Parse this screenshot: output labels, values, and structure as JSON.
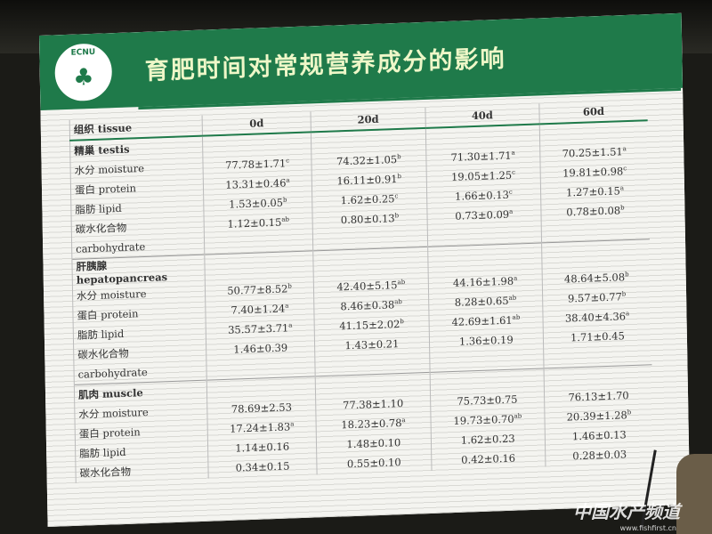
{
  "slide": {
    "title": "育肥时间对常规营养成分的影响",
    "logo_text": "EAST CHINA NORMAL UNIVERSITY",
    "accent_color": "#1f7a4a"
  },
  "table": {
    "header": [
      "组织 tissue",
      "0d",
      "20d",
      "40d",
      "60d"
    ],
    "rows": [
      {
        "label": "精巢 testis",
        "group": true,
        "cells": []
      },
      {
        "label": "水分 moisture",
        "cells": [
          [
            "77.78±1.71",
            "c"
          ],
          [
            "74.32±1.05",
            "b"
          ],
          [
            "71.30±1.71",
            "a"
          ],
          [
            "70.25±1.51",
            "a"
          ]
        ]
      },
      {
        "label": "蛋白 protein",
        "cells": [
          [
            "13.31±0.46",
            "a"
          ],
          [
            "16.11±0.91",
            "b"
          ],
          [
            "19.05±1.25",
            "c"
          ],
          [
            "19.81±0.98",
            "c"
          ]
        ]
      },
      {
        "label": "脂肪 lipid",
        "cells": [
          [
            "1.53±0.05",
            "b"
          ],
          [
            "1.62±0.25",
            "c"
          ],
          [
            "1.66±0.13",
            "c"
          ],
          [
            "1.27±0.15",
            "a"
          ]
        ]
      },
      {
        "label": "碳水化合物",
        "cells": [
          [
            "1.12±0.15",
            "ab"
          ],
          [
            "0.80±0.13",
            "b"
          ],
          [
            "0.73±0.09",
            "a"
          ],
          [
            "0.78±0.08",
            "b"
          ]
        ]
      },
      {
        "label": "carbohydrate",
        "cells": []
      },
      {
        "label": "肝胰腺 hepatopancreas",
        "group": true,
        "cells": []
      },
      {
        "label": "水分 moisture",
        "cells": [
          [
            "50.77±8.52",
            "b"
          ],
          [
            "42.40±5.15",
            "ab"
          ],
          [
            "44.16±1.98",
            "a"
          ],
          [
            "48.64±5.08",
            "b"
          ]
        ]
      },
      {
        "label": "蛋白 protein",
        "cells": [
          [
            "7.40±1.24",
            "a"
          ],
          [
            "8.46±0.38",
            "ab"
          ],
          [
            "8.28±0.65",
            "ab"
          ],
          [
            "9.57±0.77",
            "b"
          ]
        ]
      },
      {
        "label": "脂肪 lipid",
        "cells": [
          [
            "35.57±3.71",
            "a"
          ],
          [
            "41.15±2.02",
            "b"
          ],
          [
            "42.69±1.61",
            "ab"
          ],
          [
            "38.40±4.36",
            "a"
          ]
        ]
      },
      {
        "label": "碳水化合物",
        "cells": [
          [
            "1.46±0.39",
            ""
          ],
          [
            "1.43±0.21",
            ""
          ],
          [
            "1.36±0.19",
            ""
          ],
          [
            "1.71±0.45",
            ""
          ]
        ]
      },
      {
        "label": "carbohydrate",
        "cells": []
      },
      {
        "label": "肌肉 muscle",
        "group": true,
        "cells": []
      },
      {
        "label": "水分 moisture",
        "cells": [
          [
            "78.69±2.53",
            ""
          ],
          [
            "77.38±1.10",
            ""
          ],
          [
            "75.73±0.75",
            ""
          ],
          [
            "76.13±1.70",
            ""
          ]
        ]
      },
      {
        "label": "蛋白 protein",
        "cells": [
          [
            "17.24±1.83",
            "a"
          ],
          [
            "18.23±0.78",
            "a"
          ],
          [
            "19.73±0.70",
            "ab"
          ],
          [
            "20.39±1.28",
            "b"
          ]
        ]
      },
      {
        "label": "脂肪 lipid",
        "cells": [
          [
            "1.14±0.16",
            ""
          ],
          [
            "1.48±0.10",
            ""
          ],
          [
            "1.62±0.23",
            ""
          ],
          [
            "1.46±0.13",
            ""
          ]
        ]
      },
      {
        "label": "碳水化合物",
        "cells": [
          [
            "0.34±0.15",
            ""
          ],
          [
            "0.55±0.10",
            ""
          ],
          [
            "0.42±0.16",
            ""
          ],
          [
            "0.28±0.03",
            ""
          ]
        ]
      }
    ]
  },
  "watermark": {
    "name": "中国水产频道",
    "url": "www.fishfirst.cn"
  }
}
